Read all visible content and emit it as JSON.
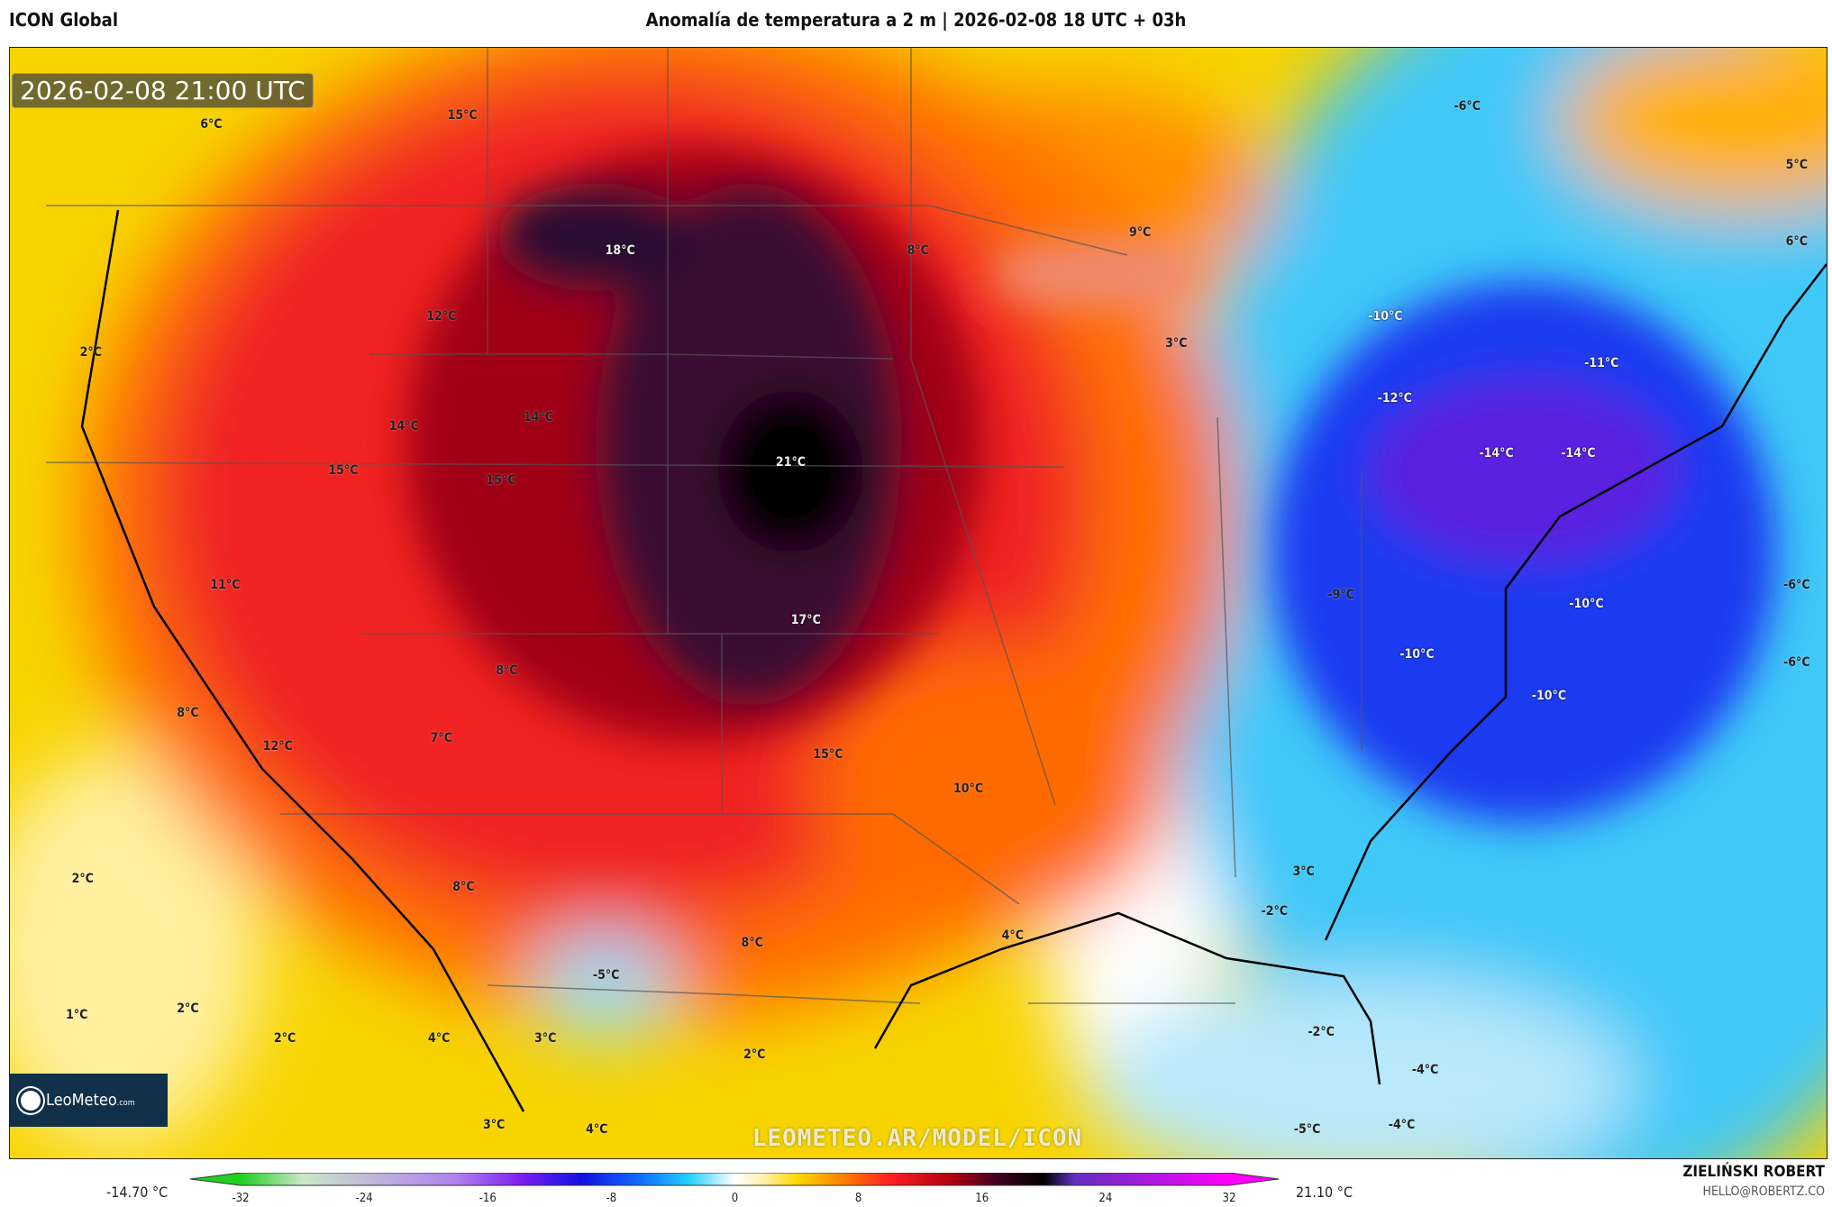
{
  "header": {
    "model": "ICON Global",
    "title": "Anomalía de temperatura a 2 m | 2026-02-08 18 UTC + 03h"
  },
  "map": {
    "valid_time": "2026-02-08 21:00 UTC",
    "watermark": "LEOMETEO.AR/MODEL/ICON",
    "logo": {
      "name": "LeoMeteo",
      "suffix": ".com"
    },
    "labels": [
      "15°C",
      "6°C",
      "18°C",
      "8°C",
      "9°C",
      "-6°C",
      "5°C",
      "6°C",
      "12°C",
      "-10°C",
      "2°C",
      "3°C",
      "-11°C",
      "14°C",
      "14°C",
      "-12°C",
      "-14°C",
      "-14°C",
      "15°C",
      "15°C",
      "21°C",
      "11°C",
      "-9°C",
      "-10°C",
      "-6°C",
      "17°C",
      "-10°C",
      "-6°C",
      "8°C",
      "8°C",
      "12°C",
      "7°C",
      "15°C",
      "-10°C",
      "10°C",
      "2°C",
      "8°C",
      "3°C",
      "-2°C",
      "4°C",
      "8°C",
      "-5°C",
      "1°C",
      "2°C",
      "2°C",
      "4°C",
      "3°C",
      "2°C",
      "-2°C",
      "-4°C",
      "3°C",
      "4°C",
      "-5°C",
      "-4°C"
    ]
  },
  "colorbar": {
    "min_label": "-14.70 °C",
    "max_label": "21.10 °C",
    "ticks": [
      "-32",
      "-24",
      "-16",
      "-8",
      "0",
      "8",
      "16",
      "24",
      "32"
    ],
    "range": [
      -32,
      32
    ],
    "stops": [
      {
        "v": -32,
        "c": "#20d020"
      },
      {
        "v": -28,
        "c": "#c8e8c8"
      },
      {
        "v": -24,
        "c": "#c0bcd8"
      },
      {
        "v": -18,
        "c": "#b080f0"
      },
      {
        "v": -14,
        "c": "#8020f0"
      },
      {
        "v": -10,
        "c": "#1010e0"
      },
      {
        "v": -6,
        "c": "#1070ff"
      },
      {
        "v": -3,
        "c": "#20d0ff"
      },
      {
        "v": 0,
        "c": "#ffffff"
      },
      {
        "v": 2,
        "c": "#fff0a0"
      },
      {
        "v": 4,
        "c": "#ffd800"
      },
      {
        "v": 7,
        "c": "#ff8000"
      },
      {
        "v": 10,
        "c": "#ff2020"
      },
      {
        "v": 14,
        "c": "#b00010"
      },
      {
        "v": 17,
        "c": "#400020"
      },
      {
        "v": 20,
        "c": "#000000"
      },
      {
        "v": 22,
        "c": "#6030c0"
      },
      {
        "v": 32,
        "c": "#ff00ff"
      }
    ]
  },
  "author": {
    "name": "ZIELIŃSKI ROBERT",
    "email": "HELLO@ROBERTZ.CO"
  }
}
